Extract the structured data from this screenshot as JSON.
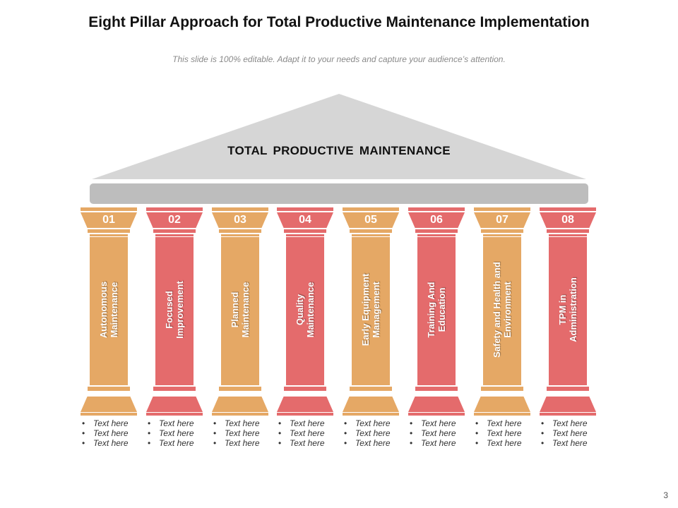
{
  "slide": {
    "title": "Eight Pillar Approach for Total Productive Maintenance Implementation",
    "subtitle": "This slide is 100% editable. Adapt it to your needs and capture your audience’s attention.",
    "roof_label": "TOTAL PRODUCTIVE  MAINTENANCE",
    "page_number": "3"
  },
  "colors": {
    "orange": "#e5a865",
    "red": "#e46b6c",
    "roof": "#d6d6d6",
    "beam": "#bdbdbd"
  },
  "pillars": [
    {
      "number": "01",
      "label_line1": "Autonomous",
      "label_line2": "Maintenance",
      "color": "orange",
      "bullets": [
        "Text here",
        "Text here",
        "Text here"
      ]
    },
    {
      "number": "02",
      "label_line1": "Focused",
      "label_line2": "Improvement",
      "color": "red",
      "bullets": [
        "Text here",
        "Text here",
        "Text here"
      ]
    },
    {
      "number": "03",
      "label_line1": "Planned",
      "label_line2": "Maintenance",
      "color": "orange",
      "bullets": [
        "Text here",
        "Text here",
        "Text here"
      ]
    },
    {
      "number": "04",
      "label_line1": "Quality",
      "label_line2": "Maintenance",
      "color": "red",
      "bullets": [
        "Text here",
        "Text here",
        "Text here"
      ]
    },
    {
      "number": "05",
      "label_line1": "Early Equipment",
      "label_line2": "Management",
      "color": "orange",
      "bullets": [
        "Text here",
        "Text here",
        "Text here"
      ]
    },
    {
      "number": "06",
      "label_line1": "Training And",
      "label_line2": "Education",
      "color": "red",
      "bullets": [
        "Text here",
        "Text here",
        "Text here"
      ]
    },
    {
      "number": "07",
      "label_line1": "Safety and Health and",
      "label_line2": "Environment",
      "color": "orange",
      "bullets": [
        "Text here",
        "Text here",
        "Text here"
      ]
    },
    {
      "number": "08",
      "label_line1": "TPM in",
      "label_line2": "Administration",
      "color": "red",
      "bullets": [
        "Text here",
        "Text here",
        "Text here"
      ]
    }
  ]
}
